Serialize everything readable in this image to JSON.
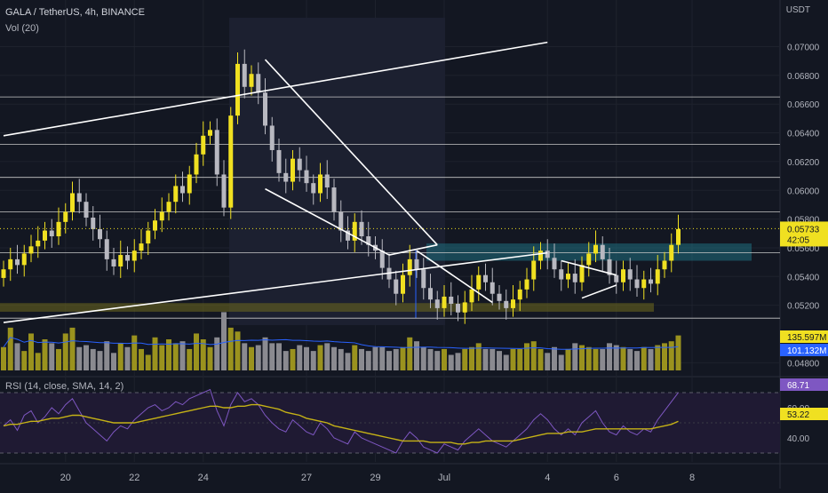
{
  "header": {
    "symbol_line": "GALA / TetherUS, 4h, BINANCE",
    "volume_label": "Vol (20)",
    "rsi_label": "RSI (14, close, SMA, 14, 2)",
    "price_unit": "USDT"
  },
  "colors": {
    "background": "#131722",
    "bull": "#f0e021",
    "bear": "#b8b8c0",
    "vol_bull": "#9a921e",
    "vol_bear": "#8a8a90",
    "vol_ma": "#2962ff",
    "rsi_line": "#7e57c2",
    "rsi_ma": "#c5b216",
    "trendline": "#ffffff",
    "zone_blue": "#1f6f7f",
    "zone_olive": "#6f6a1e",
    "price_badge": "#f0e021",
    "vol_badge_bull": "#f0e021",
    "vol_badge_ma": "#2962ff",
    "rsi_badge": "#7e57c2",
    "rsi_ma_badge": "#f0e021"
  },
  "chart_data": [
    {
      "type": "candlestick",
      "title": "GALA / TetherUS, 4h, BINANCE",
      "ylabel": "USDT",
      "ylim": [
        0.0474,
        0.0716
      ],
      "y_ticks": [
        "0.07000",
        "0.06800",
        "0.06600",
        "0.06400",
        "0.06200",
        "0.06000",
        "0.05800",
        "0.05600",
        "0.05400",
        "0.05200",
        "0.04800"
      ],
      "x_tick_labels": [
        "20",
        "22",
        "24",
        "27",
        "29",
        "Jul",
        "4",
        "6",
        "8"
      ],
      "grid": true,
      "current_price": "0.05733",
      "countdown": "42:05",
      "horizontal_levels": [
        0.0665,
        0.0632,
        0.0609,
        0.0585,
        0.05565,
        0.0511
      ],
      "close_series": [
        0.0545,
        0.0552,
        0.0548,
        0.0556,
        0.0561,
        0.0565,
        0.0572,
        0.0568,
        0.0578,
        0.0585,
        0.0598,
        0.0592,
        0.0581,
        0.0573,
        0.0566,
        0.0552,
        0.0547,
        0.0555,
        0.0551,
        0.0558,
        0.0563,
        0.0572,
        0.0579,
        0.0585,
        0.0592,
        0.0603,
        0.0598,
        0.0611,
        0.0625,
        0.0638,
        0.0642,
        0.0611,
        0.0588,
        0.0652,
        0.0688,
        0.0672,
        0.0681,
        0.0668,
        0.0645,
        0.0628,
        0.0612,
        0.0606,
        0.0622,
        0.0614,
        0.0605,
        0.0598,
        0.0611,
        0.0602,
        0.0585,
        0.0572,
        0.0565,
        0.0578,
        0.0568,
        0.0562,
        0.0558,
        0.0546,
        0.0538,
        0.0528,
        0.0541,
        0.0552,
        0.0545,
        0.0532,
        0.0524,
        0.0518,
        0.0526,
        0.0521,
        0.0515,
        0.0522,
        0.0531,
        0.0541,
        0.0536,
        0.0528,
        0.0523,
        0.0518,
        0.0524,
        0.0531,
        0.0538,
        0.0551,
        0.0558,
        0.0553,
        0.0545,
        0.0538,
        0.0542,
        0.0536,
        0.0548,
        0.0556,
        0.0562,
        0.0552,
        0.0541,
        0.0536,
        0.0545,
        0.0538,
        0.0532,
        0.0538,
        0.0535,
        0.0545,
        0.0551,
        0.0562,
        0.0573
      ],
      "annotations": [
        {
          "kind": "rising-channel-upper",
          "from": [
            0,
            0.0638
          ],
          "to": [
            79,
            0.0703
          ]
        },
        {
          "kind": "rising-channel-lower",
          "from": [
            0,
            0.0508
          ],
          "to": [
            79,
            0.05565
          ]
        },
        {
          "kind": "falling-wedge-upper",
          "from": [
            38,
            0.0691
          ],
          "to": [
            63,
            0.0562
          ]
        },
        {
          "kind": "falling-wedge-lower",
          "from": [
            38,
            0.0601
          ],
          "to": [
            56,
            0.0555
          ]
        },
        {
          "kind": "breakout-line",
          "from": [
            56,
            0.0555
          ],
          "to": [
            63,
            0.0562
          ]
        },
        {
          "kind": "triangle-upper",
          "from": [
            81,
            0.0551
          ],
          "to": [
            89,
            0.0541
          ]
        },
        {
          "kind": "triangle-lower",
          "from": [
            84,
            0.0525
          ],
          "to": [
            89,
            0.0534
          ]
        },
        {
          "kind": "drop-line",
          "from": [
            60,
            0.0558
          ],
          "to": [
            71,
            0.0522
          ]
        }
      ]
    },
    {
      "type": "bar",
      "title": "Vol (20)",
      "badges": [
        "135.597M",
        "101.132M"
      ],
      "volume_series": [
        60,
        110,
        70,
        50,
        95,
        45,
        80,
        70,
        55,
        95,
        110,
        60,
        65,
        55,
        50,
        75,
        45,
        70,
        60,
        90,
        55,
        40,
        85,
        65,
        80,
        70,
        75,
        55,
        95,
        80,
        60,
        85,
        150,
        110,
        100,
        70,
        60,
        65,
        85,
        70,
        70,
        50,
        55,
        65,
        60,
        50,
        65,
        70,
        60,
        55,
        45,
        65,
        55,
        50,
        60,
        60,
        50,
        55,
        60,
        85,
        75,
        60,
        55,
        50,
        55,
        40,
        45,
        55,
        60,
        70,
        55,
        55,
        50,
        40,
        55,
        55,
        70,
        75,
        55,
        45,
        60,
        40,
        55,
        70,
        65,
        60,
        55,
        55,
        70,
        65,
        60,
        55,
        50,
        60,
        55,
        65,
        70,
        75,
        90
      ]
    },
    {
      "type": "line",
      "title": "RSI (14, close, SMA, 14, 2)",
      "ylim": [
        28,
        78
      ],
      "y_ticks": [
        "60.00",
        "40.00"
      ],
      "badges": [
        "68.71",
        "53.22"
      ],
      "series": [
        {
          "name": "RSI",
          "values": [
            48,
            52,
            45,
            55,
            58,
            50,
            54,
            60,
            56,
            62,
            66,
            58,
            50,
            46,
            42,
            38,
            44,
            48,
            46,
            52,
            56,
            60,
            62,
            58,
            60,
            64,
            62,
            66,
            68,
            70,
            72,
            58,
            48,
            62,
            70,
            64,
            66,
            62,
            55,
            50,
            46,
            44,
            52,
            48,
            44,
            42,
            50,
            46,
            40,
            38,
            36,
            44,
            40,
            38,
            36,
            34,
            32,
            30,
            38,
            44,
            40,
            34,
            32,
            30,
            36,
            34,
            32,
            38,
            42,
            46,
            42,
            38,
            36,
            34,
            38,
            42,
            46,
            52,
            56,
            52,
            46,
            42,
            46,
            42,
            50,
            54,
            58,
            50,
            44,
            42,
            48,
            44,
            42,
            46,
            44,
            52,
            58,
            64,
            70
          ]
        },
        {
          "name": "MA",
          "values": [
            48,
            49,
            49,
            50,
            51,
            51,
            52,
            53,
            53,
            54,
            55,
            55,
            54,
            53,
            52,
            51,
            50,
            50,
            50,
            50,
            51,
            52,
            53,
            54,
            55,
            56,
            57,
            58,
            59,
            60,
            61,
            61,
            60,
            60,
            61,
            61,
            62,
            62,
            61,
            60,
            59,
            57,
            56,
            55,
            53,
            52,
            51,
            50,
            48,
            47,
            46,
            45,
            44,
            43,
            42,
            41,
            40,
            39,
            38,
            38,
            38,
            38,
            37,
            37,
            37,
            37,
            36,
            36,
            37,
            37,
            38,
            38,
            38,
            38,
            38,
            39,
            40,
            41,
            42,
            43,
            43,
            43,
            44,
            44,
            44,
            45,
            46,
            46,
            46,
            46,
            46,
            46,
            46,
            46,
            46,
            47,
            48,
            49,
            51
          ]
        }
      ]
    }
  ]
}
